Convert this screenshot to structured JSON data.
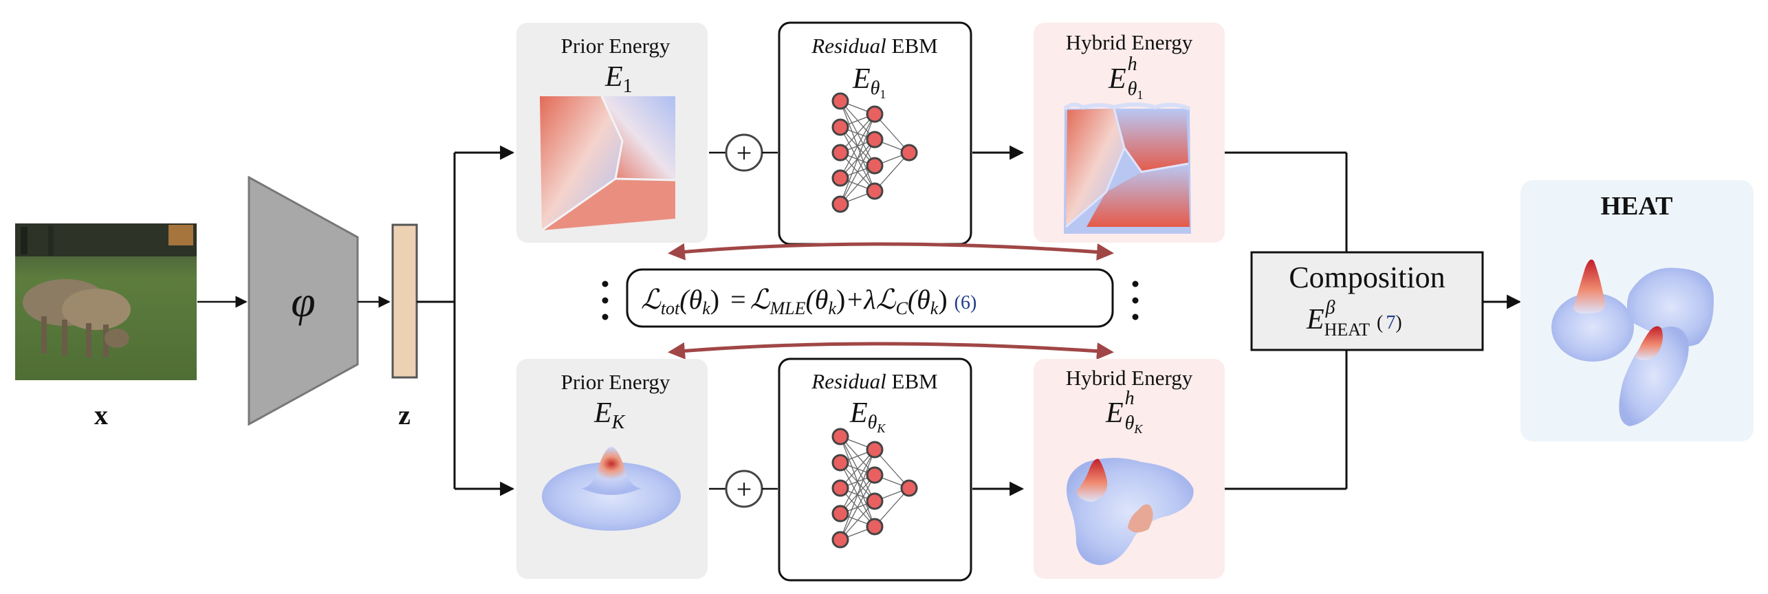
{
  "input": {
    "var_label": "x"
  },
  "encoder": {
    "symbol": "φ"
  },
  "latent": {
    "var_label": "z"
  },
  "top_branch": {
    "prior": {
      "title": "Prior Energy",
      "sym": "E",
      "sub": "1"
    },
    "residual": {
      "title_italic": "Residual",
      "title_rest": " EBM",
      "sym": "E",
      "sub": "θ",
      "subsub": "1"
    },
    "hybrid": {
      "title": "Hybrid Energy",
      "sym": "E",
      "sup": "h",
      "sub": "θ",
      "subsub": "1"
    }
  },
  "bottom_branch": {
    "prior": {
      "title": "Prior Energy",
      "sym": "E",
      "sub": "K"
    },
    "residual": {
      "title_italic": "Residual",
      "title_rest": " EBM",
      "sym": "E",
      "sub": "θ",
      "subsub": "K"
    },
    "hybrid": {
      "title": "Hybrid Energy",
      "sym": "E",
      "sup": "h",
      "sub": "θ",
      "subsub": "K"
    }
  },
  "plus_symbol": "+",
  "loss": {
    "lhs": "ℒ",
    "lhs_sub": "tot",
    "arg": "(θ",
    "arg_sub": "k",
    "arg_close": ")",
    "eq": " =",
    "t1": "ℒ",
    "t1_sub": "MLE",
    "t2": "+λℒ",
    "t2_sub": "C",
    "eq_ref": "(6)"
  },
  "composition": {
    "title": "Composition",
    "sym": "E",
    "sup": "β",
    "sub": "HEAT",
    "eq_ref": "7"
  },
  "output": {
    "title": "HEAT"
  },
  "colors": {
    "gray_panel": "#eeeeee",
    "pink_panel": "#fcecec",
    "blue_panel": "#eef5fa",
    "encoder_fill": "#a8a8a8",
    "latent_fill": "#edd1b3",
    "arrow_red": "#a04646",
    "node_fill": "#e86060",
    "energy_red": "#d8333a",
    "energy_blue": "#aebff2"
  }
}
